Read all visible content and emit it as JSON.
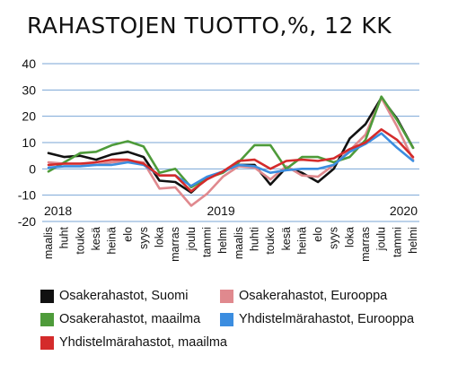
{
  "title": "RAHASTOJEN TUOTTO,%, 12 KK",
  "chart_data": {
    "type": "line",
    "title": "RAHASTOJEN TUOTTO,%, 12 KK",
    "ylim": [
      -20,
      40
    ],
    "yticks": [
      40,
      30,
      20,
      10,
      0,
      -10,
      -20
    ],
    "grid": true,
    "categories": [
      "maalis",
      "huht",
      "touko",
      "kesä",
      "heinä",
      "elo",
      "syys",
      "loka",
      "marras",
      "joulu",
      "tammi",
      "helmi",
      "maalis",
      "huhti",
      "touko",
      "kesä",
      "heinä",
      "elo",
      "syys",
      "loka",
      "marras",
      "joulu",
      "tammi",
      "helmi"
    ],
    "year_labels": [
      {
        "label": "2018",
        "index": 0
      },
      {
        "label": "2019",
        "index": 10
      },
      {
        "label": "2020",
        "index": 22
      }
    ],
    "series": [
      {
        "name": "Osakerahastot, Suomi",
        "color": "#111111",
        "values": [
          6,
          4.5,
          5,
          3.5,
          5.5,
          6.5,
          4.5,
          -4.5,
          -5,
          -9,
          -3.5,
          -1,
          1.5,
          1.5,
          -6,
          0.5,
          -1.5,
          -5,
          0,
          11.5,
          17,
          27,
          19,
          8
        ]
      },
      {
        "name": "Osakerahastot, Eurooppa",
        "color": "#e0898e",
        "values": [
          2.5,
          2,
          2,
          1.5,
          2.5,
          3,
          2.5,
          -7.5,
          -7,
          -14,
          -9.5,
          -3,
          1,
          0.5,
          -4,
          1,
          -2.5,
          -3,
          1.5,
          7,
          13,
          27,
          16,
          3.5
        ]
      },
      {
        "name": "Osakerahastot, maailma",
        "color": "#4e9b3a",
        "values": [
          -1,
          2.5,
          6,
          6.5,
          9,
          10.5,
          8.5,
          -1.5,
          0,
          -7,
          -3.5,
          -1.5,
          2.5,
          9,
          9,
          0,
          4.5,
          4.5,
          2.5,
          4.5,
          11,
          27.5,
          18.5,
          8
        ]
      },
      {
        "name": "Yhdistelmärahastot, Eurooppa",
        "color": "#3b8de0",
        "values": [
          0.5,
          1,
          1,
          1.5,
          1.5,
          2.5,
          1.5,
          -2.5,
          -2.5,
          -6.5,
          -3,
          -1,
          1.5,
          1,
          -1.5,
          -0.5,
          0,
          0,
          1.5,
          6.5,
          9.5,
          13.5,
          8,
          3
        ]
      },
      {
        "name": "Yhdistelmärahastot, maailma",
        "color": "#d42b2b",
        "values": [
          1.5,
          2,
          2,
          2.5,
          3.5,
          3.5,
          2,
          -2.5,
          -2.5,
          -8.5,
          -4,
          -1,
          3,
          3.5,
          0,
          3,
          3.5,
          3,
          4,
          7.5,
          10,
          15,
          11,
          4.5
        ]
      }
    ],
    "legend_placement": "bottom"
  }
}
